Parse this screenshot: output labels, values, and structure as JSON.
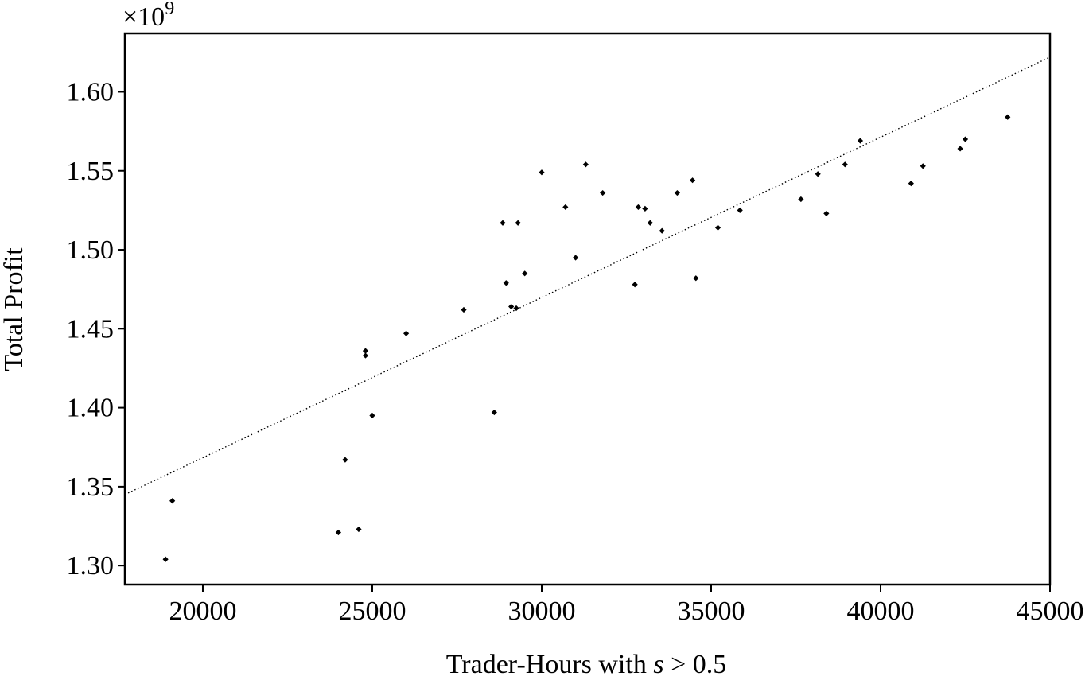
{
  "chart_data": {
    "type": "scatter",
    "title": "",
    "xlabel_parts": {
      "prefix": "Trader-Hours with ",
      "var": "s",
      "suffix": " > 0.5"
    },
    "ylabel": "Total Profit",
    "y_multiplier": {
      "base": "×10",
      "exp": "9"
    },
    "xlim": [
      17700,
      45000
    ],
    "ylim": [
      1.288,
      1.637
    ],
    "xticks": [
      {
        "value": 20000,
        "label": "20000"
      },
      {
        "value": 25000,
        "label": "25000"
      },
      {
        "value": 30000,
        "label": "30000"
      },
      {
        "value": 35000,
        "label": "35000"
      },
      {
        "value": 40000,
        "label": "40000"
      },
      {
        "value": 45000,
        "label": "45000"
      }
    ],
    "yticks": [
      {
        "value": 1.3,
        "label": "1.30"
      },
      {
        "value": 1.35,
        "label": "1.35"
      },
      {
        "value": 1.4,
        "label": "1.40"
      },
      {
        "value": 1.45,
        "label": "1.45"
      },
      {
        "value": 1.5,
        "label": "1.50"
      },
      {
        "value": 1.55,
        "label": "1.55"
      },
      {
        "value": 1.6,
        "label": "1.60"
      }
    ],
    "points": [
      [
        18900,
        1.304
      ],
      [
        19100,
        1.341
      ],
      [
        24000,
        1.321
      ],
      [
        24200,
        1.367
      ],
      [
        24600,
        1.323
      ],
      [
        24800,
        1.433
      ],
      [
        24800,
        1.436
      ],
      [
        25000,
        1.395
      ],
      [
        26000,
        1.447
      ],
      [
        27700,
        1.462
      ],
      [
        28600,
        1.397
      ],
      [
        28850,
        1.517
      ],
      [
        28950,
        1.479
      ],
      [
        29100,
        1.464
      ],
      [
        29250,
        1.463
      ],
      [
        29300,
        1.517
      ],
      [
        29500,
        1.485
      ],
      [
        30000,
        1.549
      ],
      [
        30700,
        1.527
      ],
      [
        31000,
        1.495
      ],
      [
        31300,
        1.554
      ],
      [
        31800,
        1.536
      ],
      [
        32750,
        1.478
      ],
      [
        32850,
        1.527
      ],
      [
        33050,
        1.526
      ],
      [
        33200,
        1.517
      ],
      [
        33550,
        1.512
      ],
      [
        34000,
        1.536
      ],
      [
        34450,
        1.544
      ],
      [
        34550,
        1.482
      ],
      [
        35200,
        1.514
      ],
      [
        35850,
        1.525
      ],
      [
        37650,
        1.532
      ],
      [
        38150,
        1.548
      ],
      [
        38400,
        1.523
      ],
      [
        38950,
        1.554
      ],
      [
        39400,
        1.569
      ],
      [
        40900,
        1.542
      ],
      [
        41250,
        1.553
      ],
      [
        42350,
        1.564
      ],
      [
        42500,
        1.57
      ],
      [
        43750,
        1.584
      ]
    ],
    "trendline": {
      "style": "dotted",
      "x": [
        17700,
        45000
      ],
      "y": [
        1.345,
        1.622
      ]
    }
  }
}
